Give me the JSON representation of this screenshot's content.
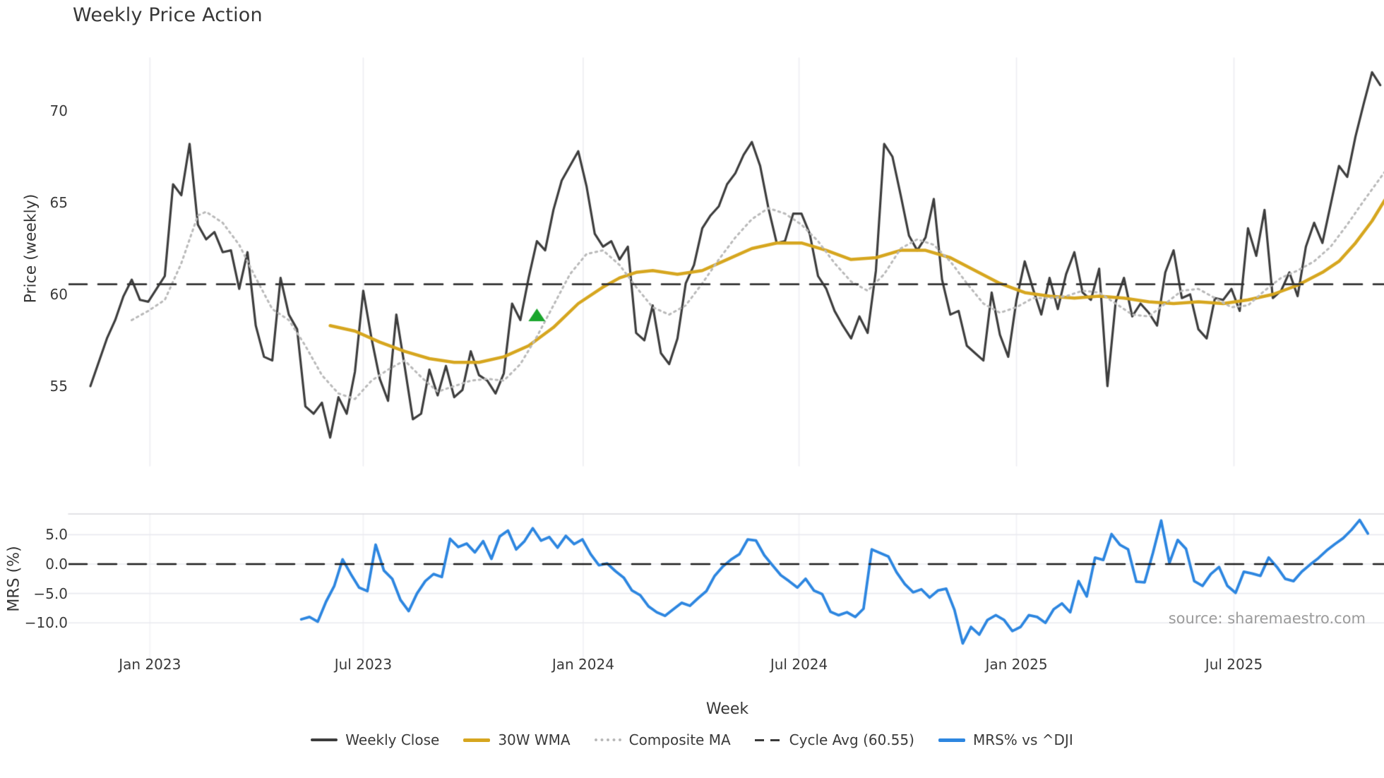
{
  "title": "Weekly Price Action",
  "source_note": "source: sharemaestro.com",
  "colors": {
    "weekly_close": "#3d3d3d",
    "wma30": "#d6a61f",
    "composite_ma": "#b9b9b9",
    "cycle_avg": "#333333",
    "mrs": "#2d86e0",
    "signal_marker": "#1aa62d",
    "grid": "#ededf2",
    "panel_border": "#d9d9de",
    "text": "#3a3a3a",
    "source_text": "#9b9b9b"
  },
  "axes": {
    "x": {
      "label": "Week",
      "ticks": [
        {
          "label": "Jan 2023",
          "week": 7.2
        },
        {
          "label": "Jul 2023",
          "week": 33.0
        },
        {
          "label": "Jan 2024",
          "week": 59.6
        },
        {
          "label": "Jul 2024",
          "week": 85.7
        },
        {
          "label": "Jan 2025",
          "week": 112.0
        },
        {
          "label": "Jul 2025",
          "week": 138.3
        }
      ]
    },
    "price": {
      "label": "Price (weekly)",
      "ticks": [
        {
          "label": "70",
          "value": 70
        },
        {
          "label": "65",
          "value": 65
        },
        {
          "label": "60",
          "value": 60
        },
        {
          "label": "55",
          "value": 55
        }
      ]
    },
    "mrs": {
      "label": "MRS (%)",
      "ticks": [
        {
          "label": "5.0",
          "value": 5
        },
        {
          "label": "0.0",
          "value": 0
        },
        {
          "label": "−5.0",
          "value": -5
        },
        {
          "label": "−10.0",
          "value": -10
        }
      ]
    }
  },
  "legend": {
    "items": [
      {
        "label": "Weekly Close",
        "style": "solid",
        "color": "#3d3d3d"
      },
      {
        "label": "30W WMA",
        "style": "solid",
        "color": "#d6a61f"
      },
      {
        "label": "Composite MA",
        "style": "dotted",
        "color": "#b9b9b9"
      },
      {
        "label": "Cycle Avg (60.55)",
        "style": "dashed",
        "color": "#3a3a3a"
      },
      {
        "label": "MRS% vs ^DJI",
        "style": "solid",
        "color": "#2d86e0"
      }
    ]
  },
  "chart_data": [
    {
      "type": "line",
      "panel": "price",
      "ylabel": "Price (weekly)",
      "ylim": [
        50.7,
        72.9
      ],
      "grid": "vertical-only",
      "cycle_avg": 60.55,
      "marker": {
        "shape": "triangle-up",
        "color": "#1aa62d",
        "week": 54.0,
        "value": 58.85
      },
      "series": [
        {
          "name": "Weekly Close",
          "color": "#3d3d3d",
          "width": 3.2,
          "week_start": 0,
          "values": [
            55.0,
            56.3,
            57.6,
            58.6,
            59.9,
            60.8,
            59.7,
            59.6,
            60.3,
            61.0,
            66.0,
            65.4,
            68.2,
            63.8,
            63.0,
            63.4,
            62.3,
            62.4,
            60.3,
            62.3,
            58.3,
            56.6,
            56.4,
            60.9,
            58.9,
            58.1,
            53.9,
            53.5,
            54.1,
            52.2,
            54.4,
            53.5,
            55.8,
            60.2,
            57.6,
            55.4,
            54.2,
            58.9,
            56.1,
            53.2,
            53.5,
            55.9,
            54.5,
            56.1,
            54.4,
            54.8,
            56.9,
            55.6,
            55.3,
            54.6,
            55.7,
            59.5,
            58.6,
            60.9,
            62.9,
            62.4,
            64.6,
            66.2,
            67.0,
            67.8,
            65.9,
            63.3,
            62.6,
            62.9,
            61.9,
            62.6,
            57.9,
            57.5,
            59.4,
            56.8,
            56.2,
            57.6,
            60.6,
            61.6,
            63.6,
            64.3,
            64.8,
            66.0,
            66.6,
            67.6,
            68.3,
            67.0,
            64.7,
            62.8,
            62.9,
            64.4,
            64.4,
            63.3,
            61.0,
            60.3,
            59.1,
            58.3,
            57.6,
            58.8,
            57.9,
            61.3,
            68.2,
            67.5,
            65.4,
            63.2,
            62.4,
            63.1,
            65.2,
            60.8,
            58.9,
            59.1,
            57.2,
            56.8,
            56.4,
            60.1,
            57.8,
            56.6,
            59.7,
            61.8,
            60.3,
            58.9,
            60.9,
            59.2,
            61.1,
            62.3,
            60.1,
            59.7,
            61.4,
            55.0,
            59.6,
            60.9,
            58.8,
            59.5,
            59.0,
            58.3,
            61.2,
            62.4,
            59.8,
            60.0,
            58.1,
            57.6,
            59.8,
            59.7,
            60.3,
            59.1,
            63.6,
            62.1,
            64.6,
            59.8,
            60.2,
            61.2,
            59.9,
            62.6,
            63.9,
            62.8,
            64.9,
            67.0,
            66.4,
            68.6,
            70.4,
            72.1,
            71.4
          ]
        },
        {
          "name": "30W WMA",
          "color": "#d6a61f",
          "width": 4.5,
          "points": [
            [
              29,
              58.3
            ],
            [
              32,
              58.0
            ],
            [
              35,
              57.4
            ],
            [
              38,
              56.9
            ],
            [
              41,
              56.5
            ],
            [
              44,
              56.3
            ],
            [
              47,
              56.3
            ],
            [
              50,
              56.6
            ],
            [
              53,
              57.2
            ],
            [
              56,
              58.2
            ],
            [
              59,
              59.5
            ],
            [
              62,
              60.4
            ],
            [
              64,
              60.9
            ],
            [
              66,
              61.2
            ],
            [
              68,
              61.3
            ],
            [
              71,
              61.1
            ],
            [
              74,
              61.3
            ],
            [
              77,
              61.9
            ],
            [
              80,
              62.5
            ],
            [
              83,
              62.8
            ],
            [
              86,
              62.8
            ],
            [
              89,
              62.4
            ],
            [
              92,
              61.9
            ],
            [
              95,
              62.0
            ],
            [
              98,
              62.4
            ],
            [
              101,
              62.4
            ],
            [
              104,
              62.0
            ],
            [
              107,
              61.3
            ],
            [
              110,
              60.6
            ],
            [
              113,
              60.1
            ],
            [
              116,
              59.9
            ],
            [
              119,
              59.8
            ],
            [
              122,
              59.9
            ],
            [
              125,
              59.8
            ],
            [
              128,
              59.6
            ],
            [
              131,
              59.5
            ],
            [
              134,
              59.6
            ],
            [
              137,
              59.5
            ],
            [
              140,
              59.7
            ],
            [
              143,
              60.0
            ],
            [
              146,
              60.5
            ],
            [
              149,
              61.2
            ],
            [
              151,
              61.8
            ],
            [
              153,
              62.8
            ],
            [
              155,
              64.0
            ],
            [
              156.9,
              65.4
            ]
          ]
        },
        {
          "name": "Composite MA",
          "color": "#b9b9b9",
          "width": 3.0,
          "dash": "dotted",
          "points": [
            [
              5,
              58.6
            ],
            [
              7,
              59.1
            ],
            [
              9,
              59.7
            ],
            [
              11,
              61.7
            ],
            [
              13,
              64.3
            ],
            [
              14,
              64.5
            ],
            [
              16,
              63.9
            ],
            [
              18,
              62.7
            ],
            [
              20,
              60.9
            ],
            [
              22,
              59.2
            ],
            [
              24,
              58.6
            ],
            [
              26,
              57.2
            ],
            [
              28,
              55.6
            ],
            [
              30,
              54.6
            ],
            [
              32,
              54.3
            ],
            [
              34,
              55.3
            ],
            [
              36,
              55.9
            ],
            [
              38,
              56.4
            ],
            [
              40,
              55.5
            ],
            [
              42,
              54.7
            ],
            [
              44,
              55.0
            ],
            [
              46,
              55.3
            ],
            [
              48,
              55.4
            ],
            [
              50,
              55.3
            ],
            [
              52,
              56.2
            ],
            [
              54,
              57.7
            ],
            [
              56,
              59.4
            ],
            [
              58,
              61.1
            ],
            [
              60,
              62.2
            ],
            [
              62,
              62.4
            ],
            [
              64,
              61.6
            ],
            [
              66,
              60.4
            ],
            [
              68,
              59.3
            ],
            [
              70,
              58.9
            ],
            [
              72,
              59.4
            ],
            [
              74,
              60.6
            ],
            [
              76,
              61.9
            ],
            [
              78,
              63.1
            ],
            [
              80,
              64.1
            ],
            [
              82,
              64.7
            ],
            [
              84,
              64.4
            ],
            [
              86,
              63.8
            ],
            [
              88,
              62.9
            ],
            [
              90,
              61.7
            ],
            [
              92,
              60.7
            ],
            [
              94,
              60.2
            ],
            [
              96,
              61.1
            ],
            [
              98,
              62.5
            ],
            [
              100,
              63.0
            ],
            [
              102,
              62.7
            ],
            [
              104,
              61.8
            ],
            [
              106,
              60.6
            ],
            [
              108,
              59.5
            ],
            [
              110,
              59.0
            ],
            [
              112,
              59.3
            ],
            [
              114,
              59.8
            ],
            [
              116,
              59.8
            ],
            [
              118,
              59.9
            ],
            [
              120,
              60.2
            ],
            [
              122,
              60.1
            ],
            [
              124,
              59.5
            ],
            [
              126,
              58.9
            ],
            [
              128,
              58.8
            ],
            [
              130,
              59.5
            ],
            [
              132,
              60.2
            ],
            [
              134,
              60.3
            ],
            [
              136,
              59.8
            ],
            [
              138,
              59.3
            ],
            [
              140,
              59.4
            ],
            [
              142,
              60.2
            ],
            [
              144,
              60.9
            ],
            [
              146,
              61.3
            ],
            [
              148,
              61.8
            ],
            [
              150,
              62.6
            ],
            [
              152,
              63.8
            ],
            [
              154,
              65.1
            ],
            [
              156.9,
              66.9
            ]
          ]
        },
        {
          "name": "Cycle Avg (60.55)",
          "type": "hline",
          "value": 60.55,
          "color": "#333333",
          "dash": "dashed",
          "width": 2.7
        }
      ]
    },
    {
      "type": "line",
      "panel": "mrs",
      "ylabel": "MRS (%)",
      "ylim": [
        -16.0,
        8.5
      ],
      "grid": "both",
      "series": [
        {
          "name": "MRS% vs ^DJI",
          "color": "#2d86e0",
          "width": 3.8,
          "week_start": 25.5,
          "values": [
            -9.4,
            -9.0,
            -9.8,
            -6.4,
            -3.7,
            0.8,
            -1.7,
            -4.0,
            -4.6,
            3.3,
            -1.1,
            -2.5,
            -6.1,
            -8.0,
            -5.0,
            -2.9,
            -1.7,
            -2.2,
            4.3,
            2.9,
            3.5,
            2.0,
            3.9,
            0.9,
            4.7,
            5.7,
            2.5,
            3.9,
            6.1,
            4.0,
            4.6,
            2.8,
            4.8,
            3.4,
            4.2,
            1.7,
            -0.2,
            0.1,
            -1.2,
            -2.3,
            -4.5,
            -5.3,
            -7.2,
            -8.2,
            -8.8,
            -7.7,
            -6.6,
            -7.1,
            -5.8,
            -4.6,
            -2.0,
            -0.4,
            0.8,
            1.7,
            4.2,
            4.0,
            1.5,
            -0.2,
            -1.9,
            -2.9,
            -4.0,
            -2.5,
            -4.5,
            -5.1,
            -8.1,
            -8.7,
            -8.2,
            -9.0,
            -7.6,
            2.5,
            1.9,
            1.3,
            -1.4,
            -3.4,
            -4.8,
            -4.3,
            -5.7,
            -4.5,
            -4.2,
            -7.8,
            -13.5,
            -10.7,
            -12.0,
            -9.5,
            -8.7,
            -9.5,
            -11.4,
            -10.7,
            -8.7,
            -9.0,
            -10.0,
            -7.7,
            -6.7,
            -8.2,
            -2.9,
            -5.5,
            1.1,
            0.7,
            5.1,
            3.3,
            2.5,
            -3.0,
            -3.1,
            1.9,
            7.4,
            0.2,
            4.1,
            2.6,
            -2.9,
            -3.7,
            -1.7,
            -0.5,
            -3.7,
            -4.9,
            -1.3,
            -1.6,
            -2.0,
            1.1,
            -0.5,
            -2.5,
            -2.9,
            -1.3,
            -0.1,
            1.0,
            2.3,
            3.4,
            4.4,
            5.8,
            7.5,
            5.2
          ]
        },
        {
          "name": "Zero Line",
          "type": "hline",
          "value": 0,
          "color": "#1a1a1a",
          "dash": "dashed",
          "width": 2.6
        }
      ]
    }
  ]
}
